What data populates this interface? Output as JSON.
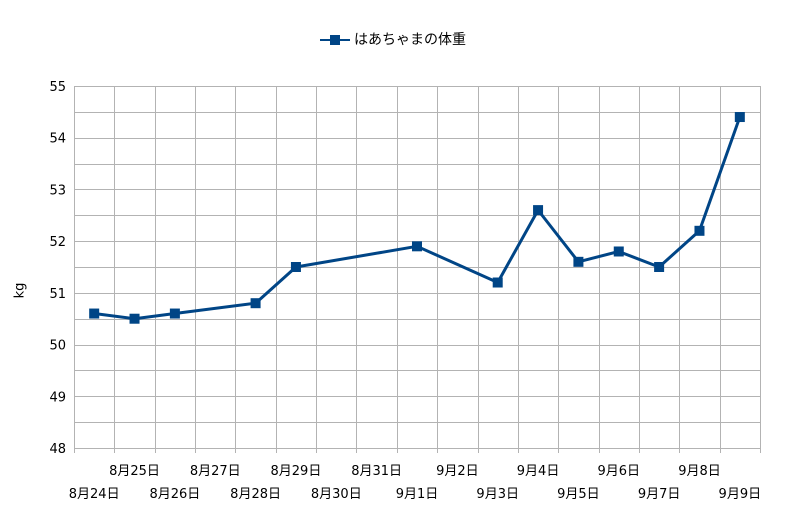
{
  "chart_data": {
    "type": "line",
    "title": "",
    "ylabel": "kg",
    "xlabel": "",
    "ylim": [
      48,
      55
    ],
    "yticks": [
      48,
      49,
      50,
      51,
      52,
      53,
      54,
      55
    ],
    "legend": "top-center",
    "grid": true,
    "x_categories": [
      "8月24日",
      "8月25日",
      "8月26日",
      "8月27日",
      "8月28日",
      "8月29日",
      "8月30日",
      "8月31日",
      "9月1日",
      "9月2日",
      "9月3日",
      "9月4日",
      "9月5日",
      "9月6日",
      "9月7日",
      "9月8日",
      "9月9日"
    ],
    "series": [
      {
        "name": "はあちゃまの体重",
        "color": "#004586",
        "points": [
          {
            "x": "8月24日",
            "y": 50.6
          },
          {
            "x": "8月25日",
            "y": 50.5
          },
          {
            "x": "8月26日",
            "y": 50.6
          },
          {
            "x": "8月28日",
            "y": 50.8
          },
          {
            "x": "8月29日",
            "y": 51.5
          },
          {
            "x": "9月1日",
            "y": 51.9
          },
          {
            "x": "9月3日",
            "y": 51.2
          },
          {
            "x": "9月4日",
            "y": 52.6
          },
          {
            "x": "9月5日",
            "y": 51.6
          },
          {
            "x": "9月6日",
            "y": 51.8
          },
          {
            "x": "9月7日",
            "y": 51.5
          },
          {
            "x": "9月8日",
            "y": 52.2
          },
          {
            "x": "9月9日",
            "y": 54.4
          }
        ]
      }
    ]
  }
}
